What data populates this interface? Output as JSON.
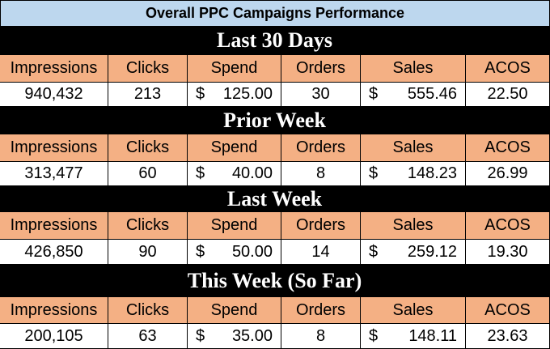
{
  "title": "Overall PPC Campaigns Performance",
  "sections": [
    {
      "title": "Last 30 Days",
      "headers": [
        "Impressions",
        "Clicks",
        "Spend",
        "Orders",
        "Sales",
        "ACOS"
      ],
      "row": [
        "940,432",
        "213",
        {
          "symbol": "$",
          "amount": "125.00"
        },
        "30",
        {
          "symbol": "$",
          "amount": "555.46"
        },
        "22.50"
      ]
    },
    {
      "title": "Prior Week",
      "headers": [
        "Impressions",
        "Clicks",
        "Spend",
        "Orders",
        "Sales",
        "ACOS"
      ],
      "row": [
        "313,477",
        "60",
        {
          "symbol": "$",
          "amount": "40.00"
        },
        "8",
        {
          "symbol": "$",
          "amount": "148.23"
        },
        "26.99"
      ]
    },
    {
      "title": "Last Week",
      "headers": [
        "Impressions",
        "Clicks",
        "Spend",
        "Orders",
        "Sales",
        "ACOS"
      ],
      "row": [
        "426,850",
        "90",
        {
          "symbol": "$",
          "amount": "50.00"
        },
        "14",
        {
          "symbol": "$",
          "amount": "259.12"
        },
        "19.30"
      ]
    },
    {
      "title": "This Week (So Far)",
      "headers": [
        "Impressions",
        "Clicks",
        "Spend",
        "Orders",
        "Sales",
        "ACOS"
      ],
      "row": [
        "200,105",
        "63",
        {
          "symbol": "$",
          "amount": "35.00"
        },
        "8",
        {
          "symbol": "$",
          "amount": "148.11"
        },
        "23.63"
      ]
    }
  ]
}
